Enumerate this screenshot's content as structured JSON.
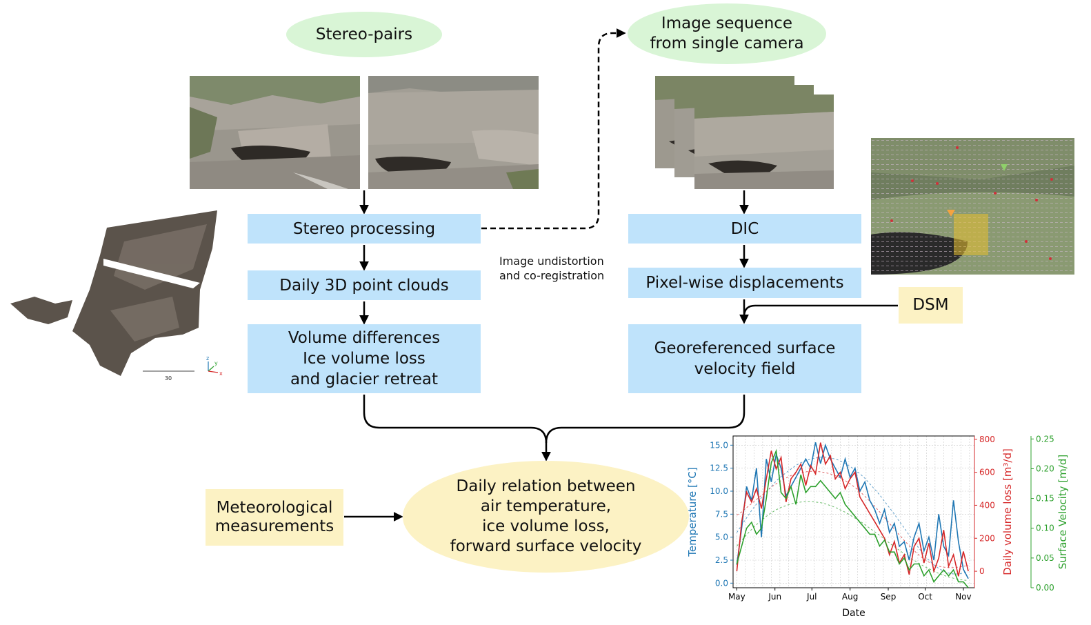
{
  "nodes": {
    "stereo_pairs": "Stereo-pairs",
    "image_sequence": "Image sequence\nfrom single camera",
    "stereo_processing": "Stereo processing",
    "daily_point_clouds": "Daily 3D point clouds",
    "volume_differences": "Volume differences\nIce volume loss\nand glacier retreat",
    "dic": "DIC",
    "pixel_displacements": "Pixel-wise displacements",
    "dsm": "DSM",
    "georeferenced_velocity": "Georeferenced surface\nvelocity field",
    "meteorological": "Meteorological\nmeasurements",
    "daily_relation": "Daily relation between\nair temperature,\nice volume loss,\nforward surface velocity"
  },
  "edge_labels": {
    "undistortion": "Image undistortion\nand co-registration"
  },
  "point_cloud": {
    "scale_label": "30",
    "axis_labels": [
      "z",
      "y",
      "x"
    ]
  },
  "colors": {
    "node_blue": "#bfe3fb",
    "oval_green": "#d9f5d6",
    "yellow": "#fcf2c4",
    "temperature": "#1f77b4",
    "volume": "#d62728",
    "velocity": "#2ca02c"
  },
  "chart_data": {
    "type": "line",
    "xlabel": "Date",
    "x_ticks": [
      "May",
      "Jun",
      "Jul",
      "Aug",
      "Sep",
      "Oct",
      "Nov"
    ],
    "grid": true,
    "axes": [
      {
        "name": "Temperature [°C]",
        "side": "left",
        "color": "#1f77b4",
        "ylim": [
          -0.5,
          16.0
        ],
        "ticks": [
          "0.0",
          "2.5",
          "5.0",
          "7.5",
          "10.0",
          "12.5",
          "15.0"
        ]
      },
      {
        "name": "Daily volume loss [m³/d]",
        "side": "right",
        "color": "#d62728",
        "ylim": [
          -100,
          820
        ],
        "ticks": [
          "0",
          "200",
          "400",
          "600",
          "800"
        ]
      },
      {
        "name": "Surface Velocity [m/d]",
        "side": "right-outer",
        "color": "#2ca02c",
        "ylim": [
          0.0,
          0.255
        ],
        "ticks": [
          "0.00",
          "0.05",
          "0.10",
          "0.15",
          "0.20",
          "0.25"
        ]
      }
    ],
    "x_days": [
      0,
      4,
      8,
      12,
      16,
      20,
      24,
      28,
      32,
      36,
      40,
      44,
      48,
      52,
      56,
      60,
      64,
      68,
      72,
      76,
      80,
      84,
      88,
      92,
      96,
      100,
      104,
      108,
      112,
      116,
      120,
      124,
      128,
      132,
      136,
      140,
      144,
      148,
      152,
      156,
      160,
      164,
      168,
      172,
      176,
      180,
      184,
      188
    ],
    "series": [
      {
        "name": "Temperature",
        "axis": 0,
        "values": [
          2.0,
          6.0,
          10.5,
          9.0,
          12.5,
          5.0,
          13.5,
          11.0,
          14.0,
          12.5,
          9.5,
          10.5,
          11.5,
          12.5,
          13.5,
          12.5,
          15.3,
          13.0,
          15.0,
          13.5,
          12.5,
          11.5,
          13.5,
          11.5,
          12.5,
          10.0,
          11.0,
          9.0,
          8.0,
          6.5,
          8.0,
          5.5,
          6.5,
          4.0,
          4.5,
          2.5,
          5.0,
          6.5,
          3.5,
          5.0,
          2.5,
          7.5,
          4.0,
          3.0,
          9.0,
          4.5,
          1.5,
          0.5
        ]
      },
      {
        "name": "Daily volume loss",
        "axis": 1,
        "values": [
          0,
          300,
          480,
          420,
          500,
          380,
          560,
          730,
          620,
          690,
          420,
          560,
          600,
          650,
          520,
          640,
          590,
          780,
          650,
          700,
          560,
          600,
          500,
          560,
          600,
          450,
          400,
          350,
          300,
          250,
          200,
          100,
          180,
          50,
          100,
          -20,
          150,
          200,
          50,
          170,
          0,
          80,
          250,
          30,
          100,
          -30,
          120,
          0
        ]
      },
      {
        "name": "Surface velocity",
        "axis": 2,
        "values": [
          0.04,
          0.07,
          0.1,
          0.11,
          0.09,
          0.1,
          0.15,
          0.21,
          0.23,
          0.16,
          0.15,
          0.17,
          0.14,
          0.19,
          0.16,
          0.17,
          0.17,
          0.18,
          0.17,
          0.16,
          0.15,
          0.16,
          0.14,
          0.13,
          0.12,
          0.11,
          0.1,
          0.09,
          0.09,
          0.07,
          0.08,
          0.06,
          0.06,
          0.04,
          0.05,
          0.03,
          0.04,
          0.04,
          0.02,
          0.03,
          0.01,
          0.02,
          0.03,
          0.02,
          0.03,
          0.01,
          0.01,
          0.0
        ]
      },
      {
        "name": "Temperature trend",
        "axis": 0,
        "values": [
          5.5,
          6.3,
          7.1,
          7.9,
          8.6,
          9.3,
          9.9,
          10.5,
          11.1,
          11.6,
          12.0,
          12.4,
          12.8,
          13.1,
          13.3,
          13.5,
          13.6,
          13.7,
          13.7,
          13.6,
          13.5,
          13.3,
          13.0,
          12.7,
          12.3,
          11.9,
          11.4,
          10.8,
          10.2,
          9.6,
          8.9,
          8.2,
          7.5,
          6.7,
          6.0,
          5.2,
          4.5,
          3.8,
          3.1,
          2.5,
          2.0,
          1.6,
          1.3,
          1.1,
          1.0,
          1.0,
          1.1,
          1.2
        ]
      },
      {
        "name": "Volume trend",
        "axis": 1,
        "values": [
          340,
          360,
          385,
          410,
          435,
          460,
          485,
          510,
          530,
          550,
          565,
          580,
          590,
          598,
          603,
          606,
          606,
          603,
          598,
          590,
          580,
          566,
          550,
          530,
          508,
          483,
          455,
          425,
          393,
          360,
          325,
          290,
          255,
          220,
          187,
          155,
          125,
          98,
          75,
          55,
          40,
          30,
          25,
          22,
          22,
          25,
          30,
          36
        ]
      },
      {
        "name": "Velocity trend",
        "axis": 2,
        "values": [
          0.07,
          0.08,
          0.089,
          0.098,
          0.106,
          0.113,
          0.12,
          0.126,
          0.131,
          0.135,
          0.138,
          0.141,
          0.143,
          0.144,
          0.145,
          0.145,
          0.144,
          0.143,
          0.141,
          0.138,
          0.135,
          0.131,
          0.127,
          0.122,
          0.117,
          0.112,
          0.106,
          0.1,
          0.094,
          0.088,
          0.082,
          0.075,
          0.069,
          0.063,
          0.057,
          0.051,
          0.046,
          0.041,
          0.036,
          0.032,
          0.028,
          0.024,
          0.021,
          0.018,
          0.016,
          0.014,
          0.013,
          0.012
        ]
      }
    ]
  }
}
